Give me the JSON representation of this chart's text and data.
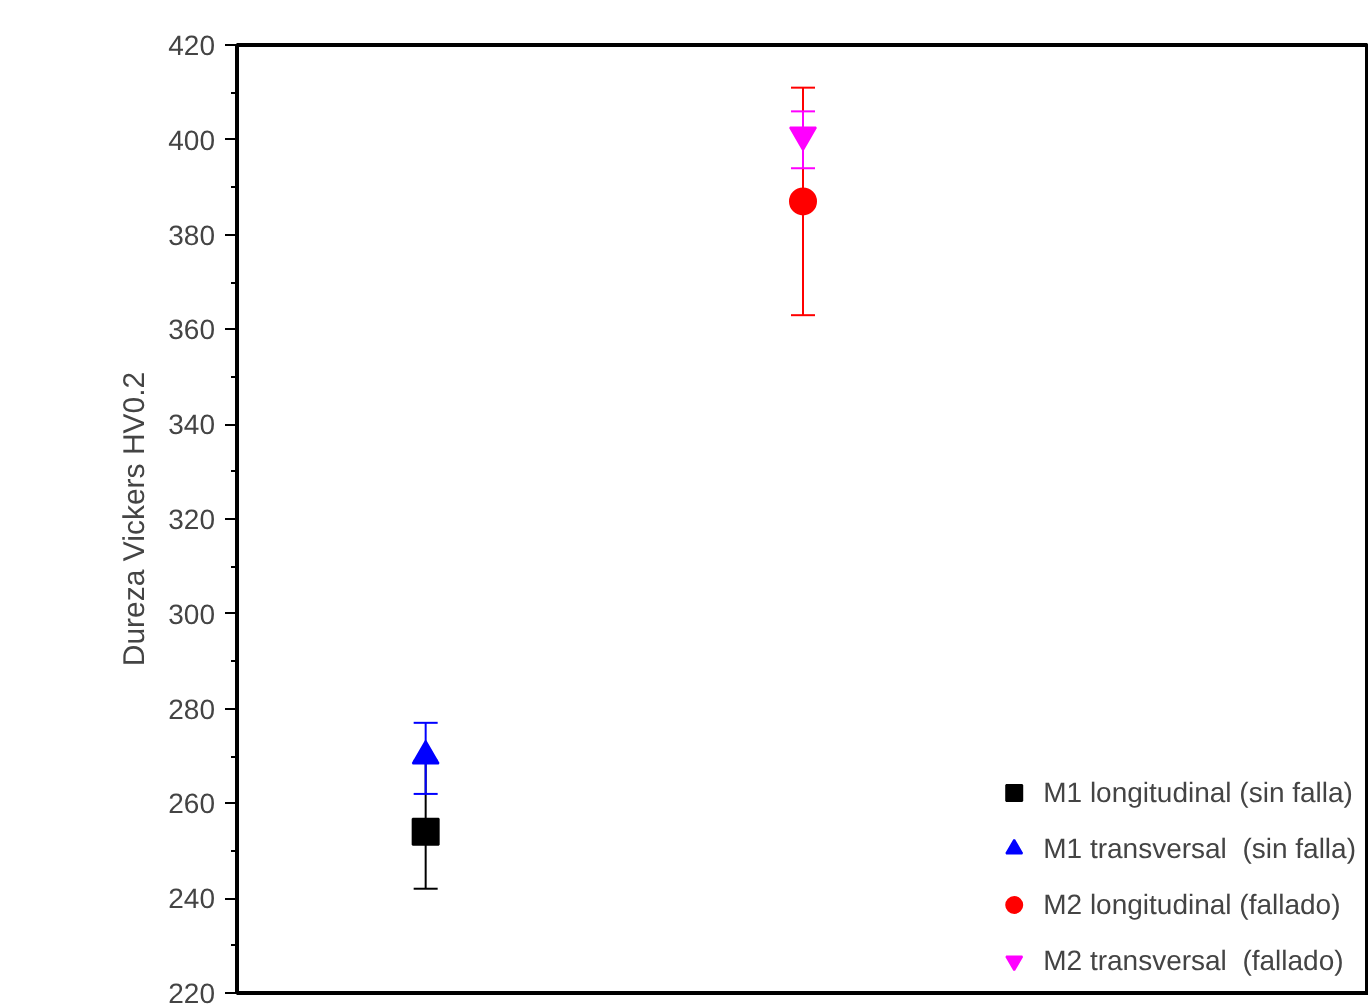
{
  "chart_data": {
    "type": "scatter",
    "ylabel": "Dureza Vickers HV0.2",
    "categories": [
      null,
      null,
      null
    ],
    "ylim": [
      220,
      420
    ],
    "yticks": [
      220,
      240,
      260,
      280,
      300,
      320,
      340,
      360,
      380,
      400,
      420
    ],
    "grid": false,
    "legend": "bottom right",
    "tick_labels": "y",
    "series": [
      {
        "name": "M1 longitudinal (sin falla)",
        "color": "#000000",
        "marker": "square",
        "values": [
          254,
          null,
          null
        ],
        "errors": [
          [
            242,
            269
          ],
          null,
          null
        ]
      },
      {
        "name": "M1 transversal  (sin falla)",
        "color": "#0000ff",
        "marker": "triangle",
        "values": [
          270,
          null,
          null
        ],
        "errors": [
          [
            262,
            277
          ],
          null,
          null
        ]
      },
      {
        "name": "M2 longitudinal (fallado)",
        "color": "#ff0000",
        "marker": "circle",
        "values": [
          null,
          387,
          null
        ],
        "errors": [
          null,
          [
            363,
            411
          ],
          null
        ]
      },
      {
        "name": "M2 transversal  (fallado)",
        "color": "#ff00ff",
        "values": [
          null,
          401,
          null
        ],
        "errors": [
          null,
          [
            394,
            406
          ],
          null
        ]
      }
    ]
  }
}
